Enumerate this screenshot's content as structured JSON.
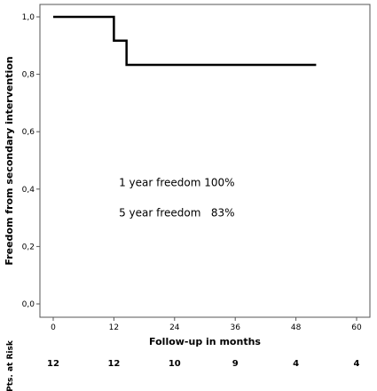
{
  "chart_data": {
    "type": "line",
    "xlabel": "Follow-up in months",
    "ylabel": "Freedom from secondary intervention",
    "xlim": [
      0,
      60
    ],
    "ylim": [
      0,
      1
    ],
    "x_ticks": [
      0,
      12,
      24,
      36,
      48,
      60
    ],
    "x_tick_labels": [
      "0",
      "12",
      "24",
      "36",
      "48",
      "60"
    ],
    "y_ticks": [
      0,
      0.2,
      0.4,
      0.6,
      0.8,
      1.0
    ],
    "y_tick_labels": [
      "0,0",
      "0,2",
      "0,4",
      "0,6",
      "0,8",
      "1,0"
    ],
    "grid": false,
    "series": [
      {
        "step": true,
        "color": "#000000",
        "x": [
          0,
          12,
          14.5,
          52
        ],
        "y": [
          1.0,
          0.917,
          0.833,
          0.833
        ]
      }
    ],
    "annotations": [
      {
        "text": "1 year freedom 100%",
        "x": 13,
        "y": 0.41
      },
      {
        "text": "5 year freedom   83%",
        "x": 13,
        "y": 0.305
      }
    ],
    "risk_table": {
      "title": "Pts. at Risk",
      "x": [
        0,
        12,
        24,
        36,
        48,
        60
      ],
      "values": [
        "12",
        "12",
        "10",
        "9",
        "4",
        "4"
      ]
    }
  }
}
